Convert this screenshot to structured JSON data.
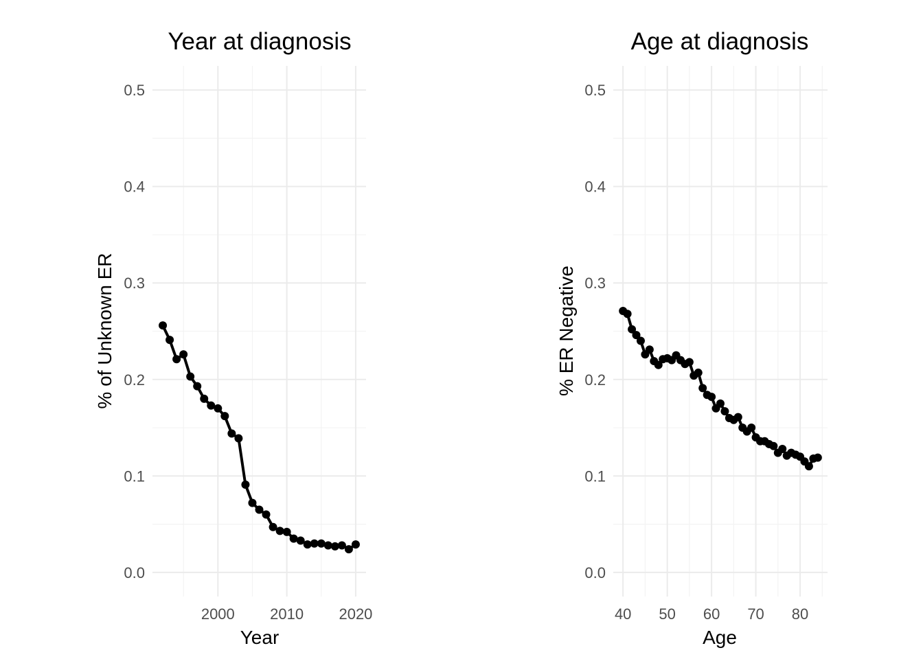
{
  "chart_data": [
    {
      "type": "line",
      "title": "Year at diagnosis",
      "xlabel": "Year",
      "ylabel": "% of Unknown ER",
      "xlim": [
        1990.5,
        2021.5
      ],
      "ylim": [
        -0.025,
        0.525
      ],
      "x_ticks": [
        2000,
        2010,
        2020
      ],
      "x_tick_labels": [
        "2000",
        "2010",
        "2020"
      ],
      "x_minor": [
        1995,
        2005,
        2015
      ],
      "y_ticks": [
        0.0,
        0.1,
        0.2,
        0.3,
        0.4,
        0.5
      ],
      "y_tick_labels": [
        "0.0",
        "0.1",
        "0.2",
        "0.3",
        "0.4",
        "0.5"
      ],
      "grid": true,
      "series": [
        {
          "x": [
            1992,
            1993,
            1994,
            1995,
            1996,
            1997,
            1998,
            1999,
            2000,
            2001,
            2002,
            2003,
            2004,
            2005,
            2006,
            2007,
            2008,
            2009,
            2010,
            2011,
            2012,
            2013,
            2014,
            2015,
            2016,
            2017,
            2018,
            2019,
            2020
          ],
          "y": [
            0.256,
            0.241,
            0.221,
            0.226,
            0.203,
            0.193,
            0.18,
            0.173,
            0.17,
            0.162,
            0.144,
            0.139,
            0.091,
            0.072,
            0.065,
            0.06,
            0.047,
            0.043,
            0.042,
            0.035,
            0.033,
            0.029,
            0.03,
            0.03,
            0.028,
            0.027,
            0.028,
            0.024,
            0.029
          ]
        }
      ]
    },
    {
      "type": "line",
      "title": "Age at diagnosis",
      "xlabel": "Age",
      "ylabel": "% ER Negative",
      "xlim": [
        37.8,
        86.2
      ],
      "ylim": [
        -0.025,
        0.525
      ],
      "x_ticks": [
        40,
        50,
        60,
        70,
        80
      ],
      "x_tick_labels": [
        "40",
        "50",
        "60",
        "70",
        "80"
      ],
      "x_minor": [
        45,
        55,
        65,
        75,
        85
      ],
      "y_ticks": [
        0.0,
        0.1,
        0.2,
        0.3,
        0.4,
        0.5
      ],
      "y_tick_labels": [
        "0.0",
        "0.1",
        "0.2",
        "0.3",
        "0.4",
        "0.5"
      ],
      "grid": true,
      "series": [
        {
          "x": [
            40,
            41,
            42,
            43,
            44,
            45,
            46,
            47,
            48,
            49,
            50,
            51,
            52,
            53,
            54,
            55,
            56,
            57,
            58,
            59,
            60,
            61,
            62,
            63,
            64,
            65,
            66,
            67,
            68,
            69,
            70,
            71,
            72,
            73,
            74,
            75,
            76,
            77,
            78,
            79,
            80,
            81,
            82,
            83,
            84
          ],
          "y": [
            0.271,
            0.268,
            0.252,
            0.246,
            0.24,
            0.226,
            0.231,
            0.219,
            0.215,
            0.221,
            0.222,
            0.22,
            0.225,
            0.22,
            0.216,
            0.218,
            0.204,
            0.207,
            0.191,
            0.184,
            0.182,
            0.17,
            0.175,
            0.167,
            0.16,
            0.158,
            0.161,
            0.15,
            0.146,
            0.15,
            0.14,
            0.136,
            0.136,
            0.133,
            0.131,
            0.124,
            0.128,
            0.121,
            0.124,
            0.122,
            0.12,
            0.115,
            0.11,
            0.118,
            0.119
          ]
        }
      ]
    }
  ]
}
